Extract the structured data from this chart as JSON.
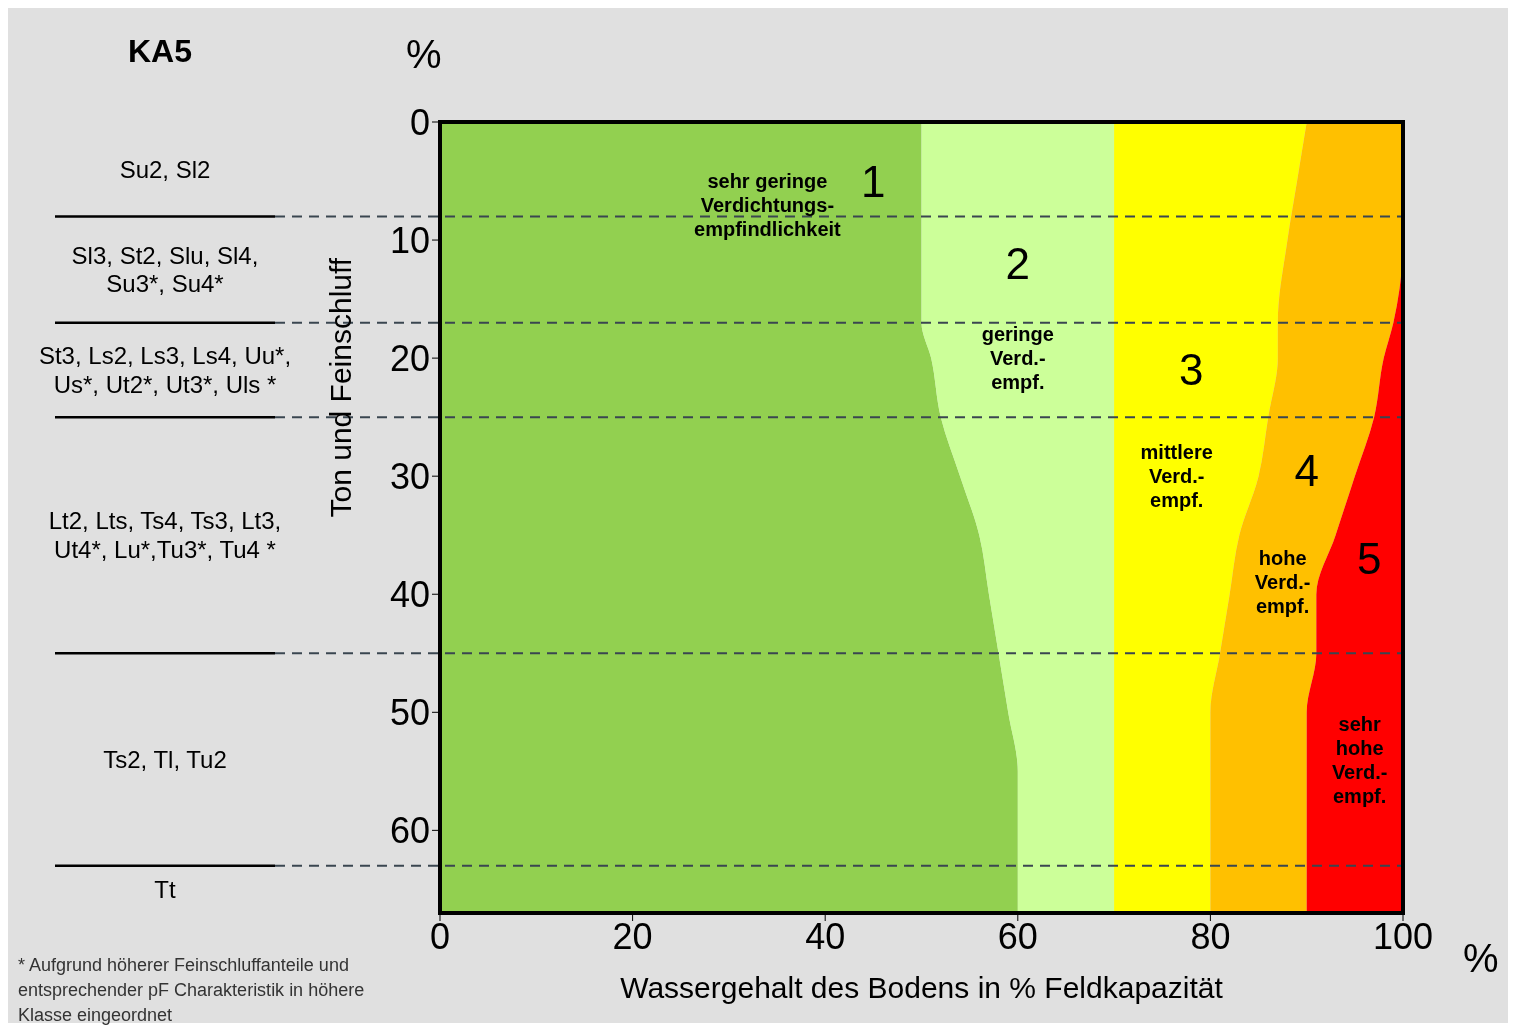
{
  "chart_data": {
    "type": "area",
    "orientation": "horizontal",
    "stacked": true,
    "title": "KA5",
    "xlabel": "Wassergehalt des Bodens in % Feldkapazität",
    "ylabel": "Ton und Feinschluff",
    "x": [
      0,
      5,
      10,
      17,
      20,
      25,
      30,
      35,
      40,
      45,
      50,
      55,
      60,
      67
    ],
    "series": [
      {
        "name": "1",
        "color": "#92d050",
        "values": [
          50,
          50,
          50,
          50,
          51,
          52,
          54,
          56,
          57,
          58,
          59,
          60,
          60,
          60
        ]
      },
      {
        "name": "2",
        "color": "#ccff99",
        "values": [
          20,
          20,
          20,
          20,
          19,
          18,
          16,
          14,
          13,
          12,
          11,
          10,
          10,
          10
        ]
      },
      {
        "name": "3",
        "color": "#ffff00",
        "values": [
          20,
          19,
          18,
          17,
          17,
          16,
          15,
          13,
          12,
          11,
          10,
          10,
          10,
          10
        ]
      },
      {
        "name": "4",
        "color": "#ffc000",
        "values": [
          10,
          11,
          12,
          12,
          11,
          11,
          10,
          10,
          9,
          10,
          10,
          10,
          10,
          10
        ]
      },
      {
        "name": "5",
        "color": "#ff0000",
        "values": [
          0,
          0,
          0,
          1,
          2,
          3,
          5,
          7,
          9,
          9,
          10,
          10,
          10,
          10
        ]
      }
    ],
    "xlim": [
      0,
      100
    ],
    "xticks": [
      0,
      20,
      40,
      60,
      80,
      100
    ],
    "ylim": [
      67,
      0
    ],
    "yticks": [
      0,
      10,
      20,
      30,
      40,
      50,
      60
    ],
    "ref_lines": [
      {
        "axis": "y",
        "value": 8,
        "line_style": "dashed"
      },
      {
        "axis": "y",
        "value": 17,
        "line_style": "dashed"
      },
      {
        "axis": "y",
        "value": 25,
        "line_style": "dashed"
      },
      {
        "axis": "y",
        "value": 45,
        "line_style": "dashed"
      },
      {
        "axis": "y",
        "value": 63,
        "line_style": "dashed"
      }
    ],
    "annotations": [
      "%",
      "%",
      "* Aufgrund höherer Feinschluffanteile und\nentsprechender pF Charakteristik in höhere\nKlasse eingeordnet",
      "sehr geringe\nVerdichtungs-\nempfindlichkeit",
      "geringe\nVerd.-\nempf.",
      "mittlere\nVerd.-\nempf.",
      "hohe\nVerd.-\nempf.",
      "sehr\nhohe\nVerd.-\nempf.",
      "Su2, Sl2",
      "Sl3, St2, Slu, Sl4,\nSu3*, Su4*",
      "St3, Ls2, Ls3, Ls4, Uu*,\nUs*, Ut2*, Ut3*, Uls *",
      "Lt2, Lts, Ts4, Ts3,  Lt3,\nUt4*, Lu*,Tu3*, Tu4 *",
      "Ts2, Tl, Tu2",
      "Tt"
    ]
  }
}
